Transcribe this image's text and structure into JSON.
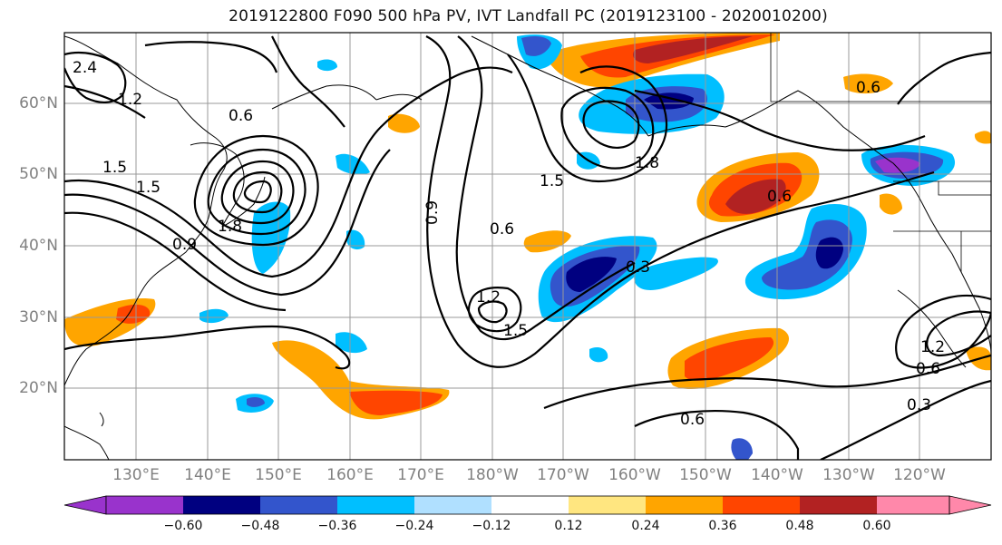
{
  "title": "2019122800 F090 500 hPa PV, IVT Landfall PC (2019123100 - 2020010200)",
  "lat_labels": [
    "60°N",
    "50°N",
    "40°N",
    "30°N",
    "20°N"
  ],
  "lon_labels": [
    "130°E",
    "140°E",
    "150°E",
    "160°E",
    "170°E",
    "180°W",
    "170°W",
    "160°W",
    "150°W",
    "140°W",
    "130°W",
    "120°W"
  ],
  "colorbar": {
    "ticks": [
      "−0.60",
      "−0.48",
      "−0.36",
      "−0.24",
      "−0.12",
      "0.12",
      "0.24",
      "0.36",
      "0.48",
      "0.60"
    ],
    "colors": [
      "#9933cc",
      "#000080",
      "#3355cc",
      "#00bfff",
      "#b0e0ff",
      "#ffffff",
      "#ffe680",
      "#ffa500",
      "#ff4500",
      "#b22222",
      "#ff88aa"
    ]
  },
  "contour_labels": [
    "0.6",
    "0.6",
    "0.6",
    "0.6",
    "0.6",
    "0.6",
    "0.9",
    "0.9",
    "1.2",
    "1.2",
    "1.2",
    "1.5",
    "1.5",
    "1.5",
    "1.5",
    "1.8",
    "1.8",
    "2.4",
    "0.3",
    "0.3"
  ]
}
